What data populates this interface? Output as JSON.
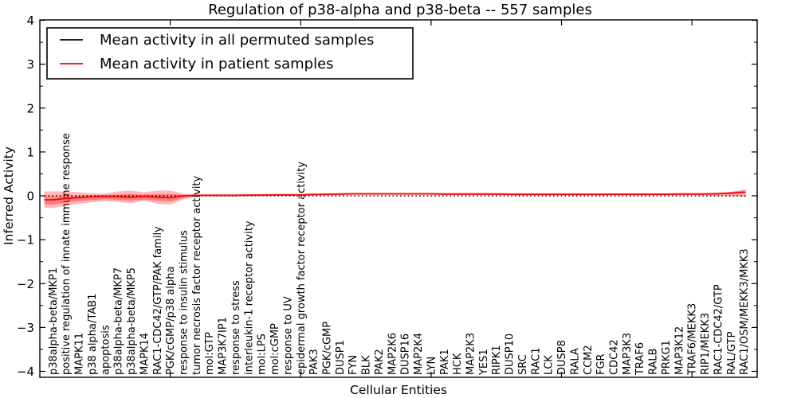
{
  "chart_data": {
    "type": "line",
    "title": "Regulation of p38-alpha and p38-beta -- 557 samples",
    "xlabel": "Cellular Entities",
    "ylabel": "Inferred Activity",
    "ylim": [
      -4,
      4
    ],
    "xlim": [
      0,
      55
    ],
    "x_major_ticks": [
      10,
      20,
      30,
      40,
      50
    ],
    "grid": false,
    "legend_position": "upper left",
    "yticks": [
      {
        "v": 4,
        "label": "4"
      },
      {
        "v": 3,
        "label": "3"
      },
      {
        "v": 2,
        "label": "2"
      },
      {
        "v": 1,
        "label": "1"
      },
      {
        "v": 0,
        "label": "0"
      },
      {
        "v": -1,
        "label": "−1"
      },
      {
        "v": -2,
        "label": "−2"
      },
      {
        "v": -3,
        "label": "−3"
      },
      {
        "v": -4,
        "label": "−4"
      }
    ],
    "categories": [
      "p38alpha-beta/MKP1",
      "positive regulation of innate immune response",
      "MAPK11",
      "p38 alpha/TAB1",
      "apoptosis",
      "p38alpha-beta/MKP7",
      "p38alpha-beta/MKP5",
      "MAPK14",
      "RAC1-CDC42/GTP/PAK family",
      "PGK/cGMP/p38 alpha",
      "response to insulin stimulus",
      "tumor necrosis factor receptor activity",
      "mol:GTP",
      "MAP3K7IP1",
      "response to stress",
      "interleukin-1 receptor activity",
      "mol:LPS",
      "mol:cGMP",
      "response to UV",
      "epidermal growth factor receptor activity",
      "PAK3",
      "PGK/cGMP",
      "DUSP1",
      "FYN",
      "BLK",
      "PAK2",
      "MAP2K6",
      "DUSP16",
      "MAP2K4",
      "LYN",
      "PAK1",
      "HCK",
      "MAP2K3",
      "YES1",
      "RIPK1",
      "DUSP10",
      "SRC",
      "RAC1",
      "LCK",
      "DUSP8",
      "RALA",
      "CCM2",
      "FGR",
      "CDC42",
      "MAP3K3",
      "TRAF6",
      "RALB",
      "PRKG1",
      "MAP3K12",
      "TRAF6/MEKK3",
      "RIP1/MEKK3",
      "RAC1-CDC42/GTP",
      "RAL/GTP",
      "RAC1/OSM/MEKK3/MKK3"
    ],
    "series": [
      {
        "name": "Mean activity in all permuted samples",
        "color": "#000000",
        "style": "dotted",
        "values": [
          0,
          0,
          0,
          0,
          0,
          0,
          0,
          0,
          0,
          0,
          0,
          0,
          0,
          0,
          0,
          0,
          0,
          0,
          0,
          0,
          0,
          0,
          0,
          0,
          0,
          0,
          0,
          0,
          0,
          0,
          0,
          0,
          0,
          0,
          0,
          0,
          0,
          0,
          0,
          0,
          0,
          0,
          0,
          0,
          0,
          0,
          0,
          0,
          0,
          0,
          0,
          0,
          0,
          0
        ]
      },
      {
        "name": "Mean activity in patient samples",
        "color": "#ff0000",
        "style": "solid",
        "values": [
          -0.09,
          -0.06,
          -0.04,
          -0.02,
          -0.01,
          -0.02,
          -0.035,
          -0.01,
          -0.03,
          -0.045,
          0,
          0.01,
          0.01,
          0.01,
          0.01,
          0.015,
          0.015,
          0.02,
          0.02,
          0.02,
          0.03,
          0.035,
          0.04,
          0.045,
          0.045,
          0.045,
          0.045,
          0.045,
          0.045,
          0.045,
          0.04,
          0.04,
          0.04,
          0.04,
          0.04,
          0.035,
          0.035,
          0.035,
          0.035,
          0.035,
          0.035,
          0.035,
          0.035,
          0.035,
          0.035,
          0.035,
          0.035,
          0.035,
          0.04,
          0.04,
          0.04,
          0.045,
          0.06,
          0.08
        ]
      }
    ],
    "bands": [
      {
        "name": "patient samples spread (outer)",
        "color": "#ff0000",
        "opacity": 0.28,
        "upper": [
          0.1,
          0.1,
          0.08,
          0.06,
          0.05,
          0.1,
          0.12,
          0.08,
          0.12,
          0.12,
          0.05,
          0.035,
          0.035,
          0.035,
          0.035,
          0.04,
          0.04,
          0.045,
          0.045,
          0.045,
          0.055,
          0.06,
          0.065,
          0.07,
          0.07,
          0.07,
          0.07,
          0.07,
          0.07,
          0.07,
          0.065,
          0.065,
          0.065,
          0.065,
          0.065,
          0.06,
          0.06,
          0.06,
          0.06,
          0.06,
          0.06,
          0.06,
          0.06,
          0.06,
          0.06,
          0.06,
          0.06,
          0.06,
          0.065,
          0.065,
          0.065,
          0.08,
          0.09,
          0.14
        ],
        "lower": [
          -0.28,
          -0.23,
          -0.18,
          -0.15,
          -0.12,
          -0.14,
          -0.17,
          -0.12,
          -0.18,
          -0.2,
          -0.08,
          -0.01,
          -0.01,
          -0.01,
          -0.01,
          -0.005,
          -0.005,
          0.0,
          0.0,
          0.0,
          0.01,
          0.015,
          0.02,
          0.025,
          0.025,
          0.025,
          0.025,
          0.025,
          0.025,
          0.025,
          0.02,
          0.02,
          0.02,
          0.02,
          0.02,
          0.015,
          0.015,
          0.015,
          0.015,
          0.015,
          0.015,
          0.015,
          0.015,
          0.015,
          0.015,
          0.015,
          0.015,
          0.015,
          0.02,
          0.02,
          0.02,
          0.0,
          -0.01,
          -0.03
        ]
      },
      {
        "name": "patient samples spread (inner)",
        "color": "#ff0000",
        "opacity": 0.3,
        "upper": [
          -0.01,
          -0.005,
          0.0,
          0.01,
          0.015,
          0.03,
          0.04,
          0.03,
          0.04,
          0.04,
          0.025,
          0.022,
          0.022,
          0.022,
          0.022,
          0.027,
          0.027,
          0.032,
          0.032,
          0.032,
          0.042,
          0.047,
          0.052,
          0.057,
          0.057,
          0.057,
          0.057,
          0.057,
          0.057,
          0.057,
          0.052,
          0.052,
          0.052,
          0.052,
          0.052,
          0.047,
          0.047,
          0.047,
          0.047,
          0.047,
          0.047,
          0.047,
          0.047,
          0.047,
          0.047,
          0.047,
          0.047,
          0.047,
          0.052,
          0.052,
          0.052,
          0.065,
          0.085,
          0.12
        ],
        "lower": [
          -0.2,
          -0.16,
          -0.12,
          -0.1,
          -0.08,
          -0.09,
          -0.11,
          -0.08,
          -0.11,
          -0.13,
          -0.05,
          -0.002,
          -0.002,
          -0.002,
          -0.002,
          0.003,
          0.003,
          0.008,
          0.008,
          0.008,
          0.018,
          0.023,
          0.028,
          0.033,
          0.033,
          0.033,
          0.033,
          0.033,
          0.033,
          0.033,
          0.028,
          0.028,
          0.028,
          0.028,
          0.028,
          0.023,
          0.023,
          0.023,
          0.023,
          0.023,
          0.023,
          0.023,
          0.023,
          0.023,
          0.023,
          0.023,
          0.023,
          0.023,
          0.028,
          0.028,
          0.028,
          0.035,
          0.045,
          0.065
        ]
      }
    ]
  }
}
